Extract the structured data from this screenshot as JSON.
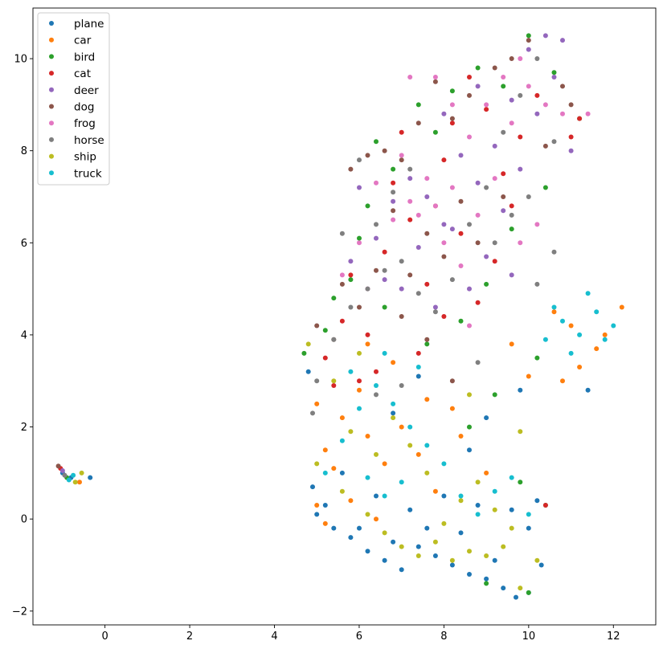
{
  "chart_data": {
    "type": "scatter",
    "title": "",
    "xlabel": "",
    "ylabel": "",
    "xlim": [
      -1.7,
      13.0
    ],
    "ylim": [
      -2.3,
      11.1
    ],
    "xticks": [
      0,
      2,
      4,
      6,
      8,
      10,
      12
    ],
    "yticks": [
      -2,
      0,
      2,
      4,
      6,
      8,
      10
    ],
    "grid": false,
    "legend_position": "top-left",
    "series": [
      {
        "name": "plane",
        "color": "#1f77b4",
        "points": [
          [
            -0.8,
            0.9
          ],
          [
            -0.35,
            0.9
          ],
          [
            -1.0,
            1.0
          ],
          [
            4.9,
            0.7
          ],
          [
            5.0,
            0.1
          ],
          [
            5.4,
            -0.2
          ],
          [
            5.8,
            -0.4
          ],
          [
            6.2,
            -0.7
          ],
          [
            6.6,
            -0.9
          ],
          [
            7.0,
            -1.1
          ],
          [
            7.4,
            -0.6
          ],
          [
            7.8,
            -0.8
          ],
          [
            8.2,
            -1.0
          ],
          [
            8.6,
            -1.2
          ],
          [
            9.0,
            -1.3
          ],
          [
            9.4,
            -1.5
          ],
          [
            9.7,
            -1.7
          ],
          [
            10.0,
            -1.6
          ],
          [
            10.3,
            -1.0
          ],
          [
            10.0,
            -0.2
          ],
          [
            9.2,
            -0.9
          ],
          [
            8.4,
            -0.3
          ],
          [
            7.6,
            -0.2
          ],
          [
            6.8,
            -0.5
          ],
          [
            6.0,
            -0.2
          ],
          [
            5.2,
            0.3
          ],
          [
            5.6,
            1.0
          ],
          [
            6.4,
            0.5
          ],
          [
            7.2,
            0.2
          ],
          [
            8.0,
            0.5
          ],
          [
            8.8,
            0.3
          ],
          [
            9.6,
            0.2
          ],
          [
            10.2,
            0.4
          ],
          [
            9.8,
            2.8
          ],
          [
            9.0,
            2.2
          ],
          [
            11.4,
            2.8
          ],
          [
            6.8,
            2.3
          ],
          [
            7.4,
            3.1
          ],
          [
            8.6,
            1.5
          ],
          [
            4.8,
            3.2
          ]
        ]
      },
      {
        "name": "car",
        "color": "#ff7f0e",
        "points": [
          [
            -0.6,
            0.8
          ],
          [
            5.0,
            0.3
          ],
          [
            5.2,
            1.5
          ],
          [
            5.6,
            2.2
          ],
          [
            6.0,
            2.8
          ],
          [
            5.4,
            1.1
          ],
          [
            6.2,
            1.8
          ],
          [
            6.6,
            1.2
          ],
          [
            7.0,
            2.0
          ],
          [
            7.4,
            1.4
          ],
          [
            5.2,
            -0.1
          ],
          [
            5.8,
            0.4
          ],
          [
            6.4,
            0.0
          ],
          [
            7.8,
            0.6
          ],
          [
            8.4,
            1.8
          ],
          [
            9.0,
            1.0
          ],
          [
            6.8,
            3.4
          ],
          [
            6.2,
            3.8
          ],
          [
            11.0,
            4.2
          ],
          [
            11.6,
            3.7
          ],
          [
            12.2,
            4.6
          ],
          [
            11.2,
            3.3
          ],
          [
            10.6,
            4.5
          ],
          [
            10.0,
            3.1
          ],
          [
            9.6,
            3.8
          ],
          [
            10.8,
            3.0
          ],
          [
            11.8,
            4.0
          ],
          [
            7.6,
            2.6
          ],
          [
            8.2,
            2.4
          ],
          [
            5.0,
            2.5
          ]
        ]
      },
      {
        "name": "bird",
        "color": "#2ca02c",
        "points": [
          [
            -0.9,
            0.9
          ],
          [
            4.7,
            3.6
          ],
          [
            5.2,
            4.1
          ],
          [
            5.8,
            5.2
          ],
          [
            6.2,
            6.8
          ],
          [
            6.8,
            7.6
          ],
          [
            7.4,
            9.0
          ],
          [
            7.8,
            8.4
          ],
          [
            8.2,
            9.3
          ],
          [
            8.8,
            9.8
          ],
          [
            9.4,
            9.4
          ],
          [
            10.0,
            10.5
          ],
          [
            10.6,
            9.7
          ],
          [
            11.2,
            8.7
          ],
          [
            10.4,
            7.2
          ],
          [
            9.6,
            6.3
          ],
          [
            9.0,
            5.1
          ],
          [
            8.4,
            4.3
          ],
          [
            7.6,
            3.8
          ],
          [
            6.6,
            4.6
          ],
          [
            6.0,
            6.1
          ],
          [
            9.2,
            2.7
          ],
          [
            9.8,
            0.8
          ],
          [
            10.4,
            0.3
          ],
          [
            10.0,
            -1.6
          ],
          [
            9.0,
            -1.4
          ],
          [
            8.6,
            2.0
          ],
          [
            10.2,
            3.5
          ],
          [
            5.4,
            4.8
          ],
          [
            6.4,
            8.2
          ]
        ]
      },
      {
        "name": "cat",
        "color": "#d62728",
        "points": [
          [
            -1.05,
            1.1
          ],
          [
            5.2,
            3.5
          ],
          [
            5.6,
            4.3
          ],
          [
            5.8,
            5.3
          ],
          [
            6.2,
            4.0
          ],
          [
            6.6,
            5.8
          ],
          [
            6.8,
            7.3
          ],
          [
            7.2,
            6.5
          ],
          [
            7.6,
            5.1
          ],
          [
            7.8,
            6.8
          ],
          [
            8.0,
            7.8
          ],
          [
            8.2,
            8.6
          ],
          [
            8.6,
            9.6
          ],
          [
            9.0,
            8.9
          ],
          [
            9.4,
            7.5
          ],
          [
            9.8,
            8.3
          ],
          [
            10.2,
            9.2
          ],
          [
            11.0,
            8.3
          ],
          [
            8.4,
            6.2
          ],
          [
            8.0,
            4.4
          ],
          [
            7.4,
            3.6
          ],
          [
            6.4,
            3.2
          ],
          [
            9.2,
            5.6
          ],
          [
            7.0,
            8.4
          ],
          [
            5.4,
            2.9
          ],
          [
            6.0,
            3.0
          ],
          [
            8.8,
            4.7
          ],
          [
            9.6,
            6.8
          ],
          [
            11.2,
            8.7
          ],
          [
            10.4,
            0.3
          ]
        ]
      },
      {
        "name": "deer",
        "color": "#9467bd",
        "points": [
          [
            -1.0,
            1.05
          ],
          [
            6.0,
            7.2
          ],
          [
            6.4,
            6.1
          ],
          [
            6.8,
            6.9
          ],
          [
            7.2,
            7.4
          ],
          [
            7.6,
            7.0
          ],
          [
            8.0,
            6.4
          ],
          [
            8.4,
            7.9
          ],
          [
            8.8,
            7.3
          ],
          [
            9.2,
            8.1
          ],
          [
            9.6,
            9.1
          ],
          [
            10.0,
            10.2
          ],
          [
            10.4,
            10.5
          ],
          [
            10.8,
            10.4
          ],
          [
            9.4,
            6.7
          ],
          [
            9.0,
            5.7
          ],
          [
            8.6,
            5.0
          ],
          [
            8.2,
            6.3
          ],
          [
            7.4,
            5.9
          ],
          [
            7.0,
            5.0
          ],
          [
            9.8,
            7.6
          ],
          [
            10.2,
            8.8
          ],
          [
            10.6,
            9.6
          ],
          [
            8.8,
            9.4
          ],
          [
            6.6,
            5.2
          ],
          [
            5.8,
            5.6
          ],
          [
            9.6,
            5.3
          ],
          [
            11.0,
            8.0
          ],
          [
            8.0,
            8.8
          ],
          [
            7.8,
            4.6
          ]
        ]
      },
      {
        "name": "dog",
        "color": "#8c564b",
        "points": [
          [
            -1.1,
            1.15
          ],
          [
            5.0,
            4.2
          ],
          [
            5.6,
            5.1
          ],
          [
            5.8,
            7.6
          ],
          [
            6.2,
            7.9
          ],
          [
            6.6,
            8.0
          ],
          [
            7.0,
            7.8
          ],
          [
            7.4,
            8.6
          ],
          [
            7.8,
            9.5
          ],
          [
            8.2,
            8.7
          ],
          [
            8.6,
            9.2
          ],
          [
            9.2,
            9.8
          ],
          [
            9.6,
            10.0
          ],
          [
            10.0,
            10.4
          ],
          [
            10.8,
            9.4
          ],
          [
            11.0,
            9.0
          ],
          [
            6.4,
            5.4
          ],
          [
            6.8,
            6.7
          ],
          [
            7.2,
            5.3
          ],
          [
            7.6,
            6.2
          ],
          [
            8.0,
            5.7
          ],
          [
            8.4,
            6.9
          ],
          [
            8.8,
            6.0
          ],
          [
            9.4,
            7.0
          ],
          [
            10.4,
            8.1
          ],
          [
            6.0,
            4.6
          ],
          [
            5.4,
            3.9
          ],
          [
            7.0,
            4.4
          ],
          [
            7.6,
            3.9
          ],
          [
            8.2,
            3.0
          ]
        ]
      },
      {
        "name": "frog",
        "color": "#e377c2",
        "points": [
          [
            6.0,
            6.0
          ],
          [
            6.4,
            7.3
          ],
          [
            6.8,
            6.5
          ],
          [
            7.2,
            6.9
          ],
          [
            7.6,
            7.4
          ],
          [
            8.0,
            6.0
          ],
          [
            8.4,
            5.5
          ],
          [
            8.8,
            6.6
          ],
          [
            9.2,
            7.4
          ],
          [
            9.6,
            8.6
          ],
          [
            10.0,
            9.4
          ],
          [
            10.4,
            9.0
          ],
          [
            10.8,
            8.8
          ],
          [
            11.4,
            8.8
          ],
          [
            9.8,
            10.0
          ],
          [
            9.4,
            9.6
          ],
          [
            9.0,
            9.0
          ],
          [
            8.6,
            8.3
          ],
          [
            8.2,
            7.2
          ],
          [
            7.8,
            6.8
          ],
          [
            7.4,
            6.6
          ],
          [
            7.0,
            7.9
          ],
          [
            7.2,
            9.6
          ],
          [
            7.8,
            9.6
          ],
          [
            8.2,
            9.0
          ],
          [
            9.8,
            6.0
          ],
          [
            6.2,
            5.0
          ],
          [
            10.2,
            6.4
          ],
          [
            5.6,
            5.3
          ],
          [
            8.6,
            4.2
          ]
        ]
      },
      {
        "name": "horse",
        "color": "#7f7f7f",
        "points": [
          [
            -0.95,
            0.95
          ],
          [
            5.0,
            3.0
          ],
          [
            5.4,
            3.9
          ],
          [
            5.8,
            4.6
          ],
          [
            6.2,
            5.0
          ],
          [
            6.6,
            5.4
          ],
          [
            7.0,
            5.6
          ],
          [
            7.4,
            4.9
          ],
          [
            7.8,
            4.5
          ],
          [
            8.2,
            5.2
          ],
          [
            8.6,
            6.4
          ],
          [
            9.0,
            7.2
          ],
          [
            9.4,
            8.4
          ],
          [
            9.8,
            9.2
          ],
          [
            10.2,
            10.0
          ],
          [
            10.6,
            8.2
          ],
          [
            10.0,
            7.0
          ],
          [
            9.6,
            6.6
          ],
          [
            9.2,
            6.0
          ],
          [
            6.4,
            6.4
          ],
          [
            6.8,
            7.1
          ],
          [
            7.2,
            7.6
          ],
          [
            6.0,
            7.8
          ],
          [
            5.6,
            6.2
          ],
          [
            4.9,
            2.3
          ],
          [
            10.6,
            5.8
          ],
          [
            10.2,
            5.1
          ],
          [
            8.8,
            3.4
          ],
          [
            7.0,
            2.9
          ],
          [
            6.4,
            2.7
          ]
        ]
      },
      {
        "name": "ship",
        "color": "#bcbd22",
        "points": [
          [
            -0.55,
            1.0
          ],
          [
            -0.7,
            0.8
          ],
          [
            5.0,
            1.2
          ],
          [
            5.6,
            0.6
          ],
          [
            6.2,
            0.1
          ],
          [
            6.6,
            -0.3
          ],
          [
            7.0,
            -0.6
          ],
          [
            7.4,
            -0.8
          ],
          [
            7.8,
            -0.5
          ],
          [
            8.2,
            -0.9
          ],
          [
            8.6,
            -0.7
          ],
          [
            9.0,
            -0.8
          ],
          [
            9.4,
            -0.6
          ],
          [
            9.8,
            -1.5
          ],
          [
            10.2,
            -0.9
          ],
          [
            9.6,
            -0.2
          ],
          [
            9.2,
            0.2
          ],
          [
            8.8,
            0.8
          ],
          [
            8.4,
            0.4
          ],
          [
            8.0,
            -0.1
          ],
          [
            7.6,
            1.0
          ],
          [
            7.2,
            1.6
          ],
          [
            6.8,
            2.2
          ],
          [
            6.4,
            1.4
          ],
          [
            5.8,
            1.9
          ],
          [
            5.4,
            3.0
          ],
          [
            4.8,
            3.8
          ],
          [
            9.8,
            1.9
          ],
          [
            8.6,
            2.7
          ],
          [
            6.0,
            3.6
          ]
        ]
      },
      {
        "name": "truck",
        "color": "#17becf",
        "points": [
          [
            -0.85,
            0.85
          ],
          [
            -0.75,
            0.95
          ],
          [
            5.2,
            1.0
          ],
          [
            5.6,
            1.7
          ],
          [
            6.0,
            2.4
          ],
          [
            6.4,
            2.9
          ],
          [
            6.8,
            2.5
          ],
          [
            7.2,
            2.0
          ],
          [
            7.6,
            1.6
          ],
          [
            8.0,
            1.2
          ],
          [
            8.4,
            0.5
          ],
          [
            8.8,
            0.1
          ],
          [
            9.2,
            0.6
          ],
          [
            9.6,
            0.9
          ],
          [
            10.0,
            0.1
          ],
          [
            7.0,
            0.8
          ],
          [
            6.6,
            0.5
          ],
          [
            6.2,
            0.9
          ],
          [
            5.8,
            3.2
          ],
          [
            6.6,
            3.6
          ],
          [
            7.4,
            3.3
          ],
          [
            10.4,
            3.9
          ],
          [
            10.8,
            4.3
          ],
          [
            11.2,
            4.0
          ],
          [
            11.6,
            4.5
          ],
          [
            12.0,
            4.2
          ],
          [
            11.4,
            4.9
          ],
          [
            10.6,
            4.6
          ],
          [
            11.0,
            3.6
          ],
          [
            11.8,
            3.9
          ]
        ]
      }
    ]
  }
}
